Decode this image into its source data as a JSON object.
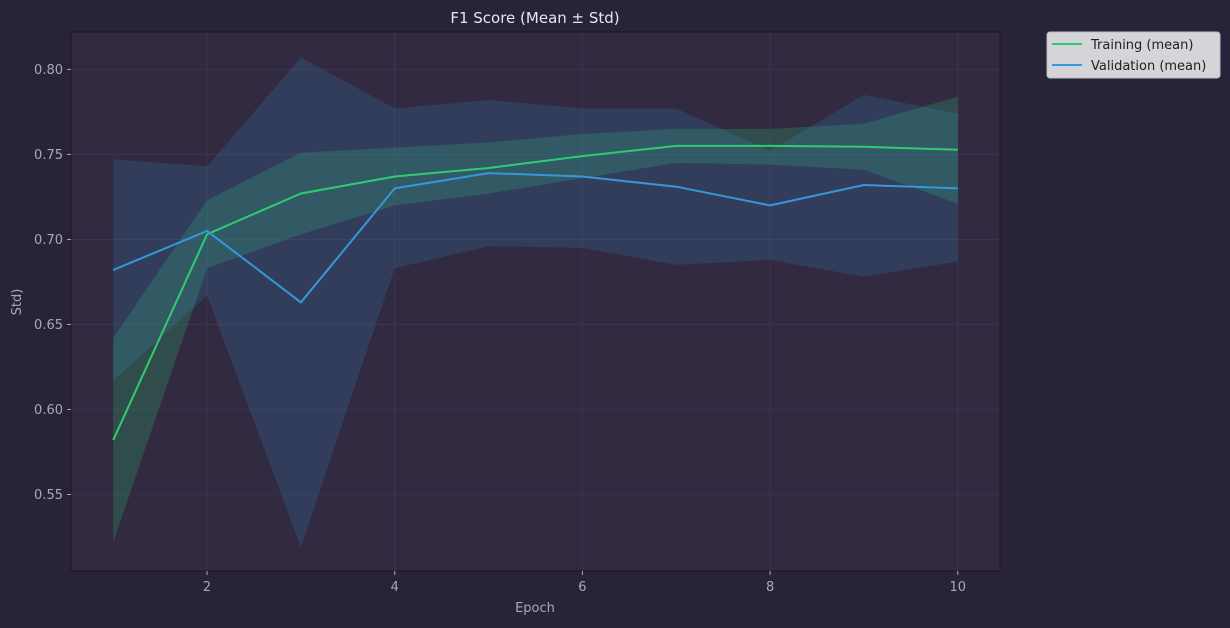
{
  "chart_data": {
    "type": "line",
    "title": "F1 Score (Mean ± Std)",
    "xlabel": "Epoch",
    "ylabel": "Std)",
    "xlim": [
      0.55,
      10.45
    ],
    "ylim": [
      0.505,
      0.822
    ],
    "x_ticks": [
      2,
      4,
      6,
      8,
      10
    ],
    "y_ticks": [
      0.55,
      0.6,
      0.65,
      0.7,
      0.75,
      0.8
    ],
    "y_tick_labels": [
      "0.55",
      "0.60",
      "0.65",
      "0.70",
      "0.75",
      "0.80"
    ],
    "x_tick_labels": [
      "2",
      "4",
      "6",
      "8",
      "10"
    ],
    "grid": true,
    "legend_position": "outside-top-right",
    "x": [
      1,
      2,
      3,
      4,
      5,
      6,
      7,
      8,
      9,
      10
    ],
    "series": [
      {
        "name": "Training (mean)",
        "color": "#2ecc71",
        "values": [
          0.582,
          0.703,
          0.727,
          0.737,
          0.742,
          0.749,
          0.755,
          0.755,
          0.7545,
          0.7528
        ],
        "upper": [
          0.642,
          0.723,
          0.751,
          0.754,
          0.757,
          0.762,
          0.765,
          0.765,
          0.768,
          0.784
        ],
        "lower": [
          0.522,
          0.683,
          0.703,
          0.72,
          0.727,
          0.736,
          0.745,
          0.744,
          0.741,
          0.721
        ]
      },
      {
        "name": "Validation (mean)",
        "color": "#3498db",
        "values": [
          0.682,
          0.705,
          0.663,
          0.73,
          0.739,
          0.737,
          0.731,
          0.72,
          0.732,
          0.73
        ],
        "upper": [
          0.747,
          0.743,
          0.807,
          0.777,
          0.782,
          0.777,
          0.777,
          0.752,
          0.785,
          0.774
        ],
        "lower": [
          0.617,
          0.667,
          0.519,
          0.683,
          0.696,
          0.695,
          0.685,
          0.688,
          0.678,
          0.687
        ]
      }
    ]
  },
  "colors": {
    "figure_bg": "#282339",
    "axes_bg": "#322a40",
    "grid": "#3d3650",
    "text": "#a8a8b8",
    "title": "#e6e6ee"
  }
}
